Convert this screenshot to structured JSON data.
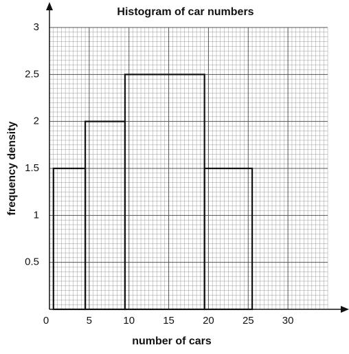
{
  "chart_data": {
    "type": "histogram",
    "title": "Histogram of car numbers",
    "x_label": "number of cars",
    "y_label": "frequency density",
    "bins": [
      0.5,
      4.5,
      9.5,
      19.5,
      25.5
    ],
    "values": [
      1.5,
      2,
      2.5,
      1.5
    ],
    "color": "#111111",
    "xlim": [
      0,
      35
    ],
    "xticks": [
      0,
      5,
      10,
      15,
      20,
      25,
      30
    ],
    "ylim": [
      0,
      3
    ],
    "yticks": [
      0.5,
      1,
      1.5,
      2,
      2.5,
      3
    ],
    "grid": true
  }
}
